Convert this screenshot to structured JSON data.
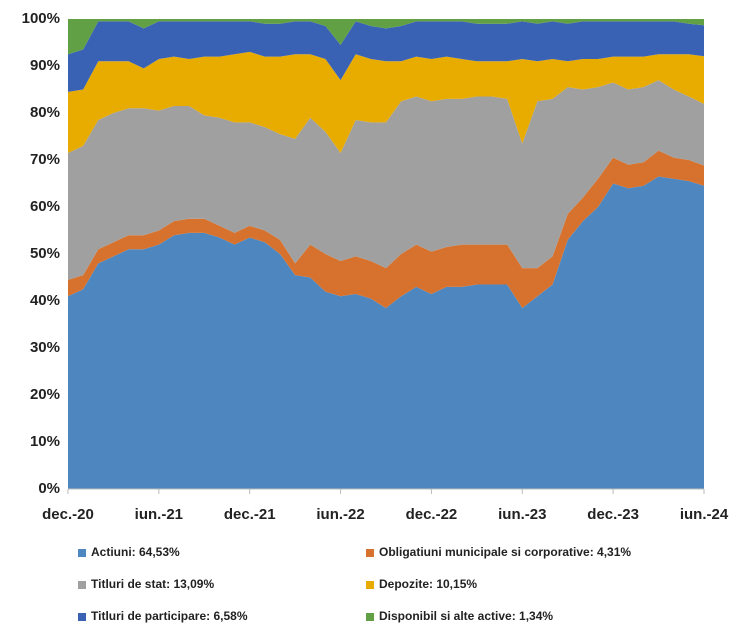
{
  "chart_data": {
    "type": "stacked_area",
    "categories": [
      "dec.-20",
      null,
      null,
      null,
      null,
      null,
      "iun.-21",
      null,
      null,
      null,
      null,
      null,
      "dec.-21",
      null,
      null,
      null,
      null,
      null,
      "iun.-22",
      null,
      null,
      null,
      null,
      null,
      "dec.-22",
      null,
      null,
      null,
      null,
      null,
      "iun.-23",
      null,
      null,
      null,
      null,
      null,
      "dec.-23",
      null,
      null,
      null,
      null,
      null,
      "iun.-24"
    ],
    "series": [
      {
        "name": "Actiuni: 64,53%",
        "color": "#4e87c0",
        "values": [
          41,
          42.5,
          48,
          49.5,
          51,
          51,
          52,
          54,
          54.5,
          54.5,
          53.5,
          52,
          53.5,
          52.5,
          50,
          45.5,
          45,
          42,
          41,
          41.5,
          40.5,
          38.5,
          41,
          43,
          41.5,
          43,
          43,
          43.5,
          43.5,
          43.5,
          38.5,
          41,
          43.5,
          53,
          57,
          60,
          65,
          64,
          64.5,
          66.5,
          66,
          65.5,
          64.53
        ]
      },
      {
        "name": "Obligatiuni municipale si corporative: 4,31%",
        "color": "#d6722e",
        "values": [
          3.5,
          3,
          3,
          3,
          3,
          3,
          3,
          3,
          3,
          3,
          2.5,
          2.5,
          2.5,
          2.5,
          3,
          2.5,
          7,
          8,
          7.5,
          8,
          8,
          8.5,
          9,
          9,
          9,
          8.5,
          9,
          8.5,
          8.5,
          8.5,
          8.5,
          6,
          6,
          5.5,
          5,
          6,
          5.5,
          5,
          5,
          5.5,
          4.5,
          4.5,
          4.31
        ]
      },
      {
        "name": "Titluri de stat: 13,09%",
        "color": "#a0a0a0",
        "values": [
          27,
          27.5,
          27.5,
          27.5,
          27,
          27,
          25.5,
          24.5,
          24,
          22,
          23,
          23.5,
          22,
          22,
          22.5,
          26.5,
          27,
          26,
          23,
          29,
          29.5,
          31,
          32.5,
          31.5,
          32,
          31.5,
          31,
          31.5,
          31.5,
          31,
          26.5,
          35.5,
          33.5,
          27,
          23,
          19.5,
          16,
          16,
          16,
          15,
          14.5,
          13.5,
          13.09
        ]
      },
      {
        "name": "Depozite: 10,15%",
        "color": "#e8ac00",
        "values": [
          13,
          12,
          12.5,
          11,
          10,
          8.5,
          11,
          10.5,
          10,
          12.5,
          13,
          14.5,
          15,
          15,
          16.5,
          18,
          13.5,
          15.5,
          15.5,
          14,
          13.5,
          13,
          8.5,
          8.5,
          9,
          9,
          8.5,
          7.5,
          7.5,
          8,
          18,
          8.5,
          8.5,
          5.5,
          6.5,
          6,
          5.5,
          7,
          6.5,
          5.5,
          7.5,
          9,
          10.15
        ]
      },
      {
        "name": "Titluri de participare: 6,58%",
        "color": "#3a62b4",
        "values": [
          8,
          8.5,
          8.5,
          8.5,
          8.5,
          8.5,
          8,
          7.5,
          8,
          7.5,
          7.5,
          7,
          6.5,
          7,
          7,
          7,
          7,
          7,
          7.5,
          7,
          7,
          7,
          7.5,
          7.5,
          8,
          7.5,
          8,
          8,
          8,
          8,
          8,
          8,
          8,
          8,
          8,
          8,
          7.5,
          7.5,
          7.5,
          7,
          7,
          6.5,
          6.58
        ]
      },
      {
        "name": "Disponibil si alte active: 1,34%",
        "color": "#62a046",
        "values": [
          7.5,
          6.5,
          0.5,
          0.5,
          0.5,
          2,
          0.5,
          0.5,
          0.5,
          0.5,
          0.5,
          0.5,
          0.5,
          1,
          1,
          0.5,
          0.5,
          1.5,
          5.5,
          0.5,
          1.5,
          2,
          1.5,
          0.5,
          0.5,
          0.5,
          0.5,
          1,
          1,
          1,
          0.5,
          1,
          0.5,
          1,
          0.5,
          0.5,
          0.5,
          0.5,
          0.5,
          0.5,
          0.5,
          1,
          1.34
        ]
      }
    ],
    "ylim": [
      0,
      100
    ],
    "yticks": [
      {
        "value": 0,
        "label": "0%"
      },
      {
        "value": 10,
        "label": "10%"
      },
      {
        "value": 20,
        "label": "20%"
      },
      {
        "value": 30,
        "label": "30%"
      },
      {
        "value": 40,
        "label": "40%"
      },
      {
        "value": 50,
        "label": "50%"
      },
      {
        "value": 60,
        "label": "60%"
      },
      {
        "value": 70,
        "label": "70%"
      },
      {
        "value": 80,
        "label": "80%"
      },
      {
        "value": 90,
        "label": "90%"
      },
      {
        "value": 100,
        "label": "100%"
      }
    ],
    "grid": false
  }
}
